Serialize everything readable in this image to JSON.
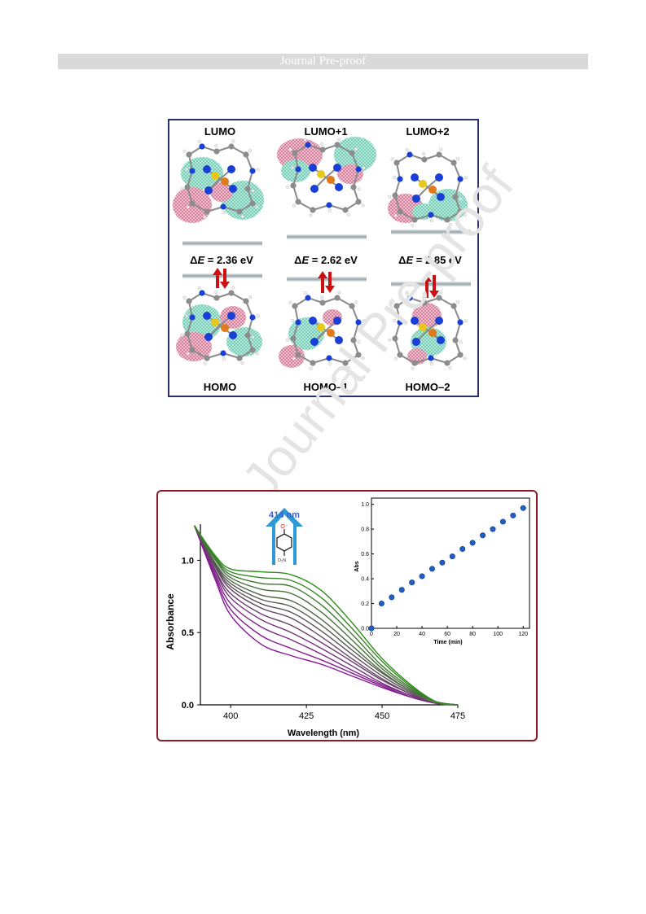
{
  "header": {
    "title": "Journal Pre-proof"
  },
  "watermark": "Journal Pre-proof",
  "figure1": {
    "lumo_labels": [
      "LUMO",
      "LUMO+1",
      "LUMO+2"
    ],
    "homo_labels": [
      "HOMO",
      "HOMO–1",
      "HOMO–2"
    ],
    "gaps": [
      {
        "prefix": "Δ",
        "var": "E",
        "value": " = 2.36 eV"
      },
      {
        "prefix": "Δ",
        "var": "E",
        "value": " = 2.62 eV"
      },
      {
        "prefix": "Δ",
        "var": "E",
        "value": " = 2.85 eV"
      }
    ],
    "colors": {
      "positive_lobe": "#6fcdb7",
      "negative_lobe": "#d77f9a",
      "arrow": "#cc1111",
      "level": "#9aa3a8"
    }
  },
  "chart_data": [
    {
      "type": "line",
      "title": "",
      "xlabel": "Wavelength (nm)",
      "ylabel": "Absorbance",
      "xlim": [
        390,
        475
      ],
      "ylim": [
        0.0,
        1.25
      ],
      "xticks": [
        "400",
        "425",
        "450",
        "475"
      ],
      "yticks": [
        "0.0",
        "0.5",
        "1.0"
      ],
      "annotation": "414 nm",
      "colors": {
        "early": "#8b139b",
        "late": "#2f8f1b"
      },
      "series": [
        {
          "values": [
            [
              388,
              1.24
            ],
            [
              395,
              0.86
            ],
            [
              400,
              0.62
            ],
            [
              410,
              0.42
            ],
            [
              420,
              0.34
            ],
            [
              430,
              0.28
            ],
            [
              440,
              0.2
            ],
            [
              450,
              0.12
            ],
            [
              460,
              0.05
            ],
            [
              468,
              0.01
            ],
            [
              475,
              0.0
            ]
          ]
        },
        {
          "values": [
            [
              388,
              1.24
            ],
            [
              395,
              0.88
            ],
            [
              400,
              0.66
            ],
            [
              410,
              0.48
            ],
            [
              420,
              0.39
            ],
            [
              430,
              0.31
            ],
            [
              440,
              0.22
            ],
            [
              450,
              0.13
            ],
            [
              460,
              0.05
            ],
            [
              468,
              0.01
            ],
            [
              475,
              0.0
            ]
          ]
        },
        {
          "values": [
            [
              388,
              1.24
            ],
            [
              395,
              0.9
            ],
            [
              400,
              0.7
            ],
            [
              410,
              0.54
            ],
            [
              420,
              0.45
            ],
            [
              430,
              0.35
            ],
            [
              440,
              0.24
            ],
            [
              450,
              0.14
            ],
            [
              460,
              0.06
            ],
            [
              468,
              0.01
            ],
            [
              475,
              0.0
            ]
          ]
        },
        {
          "values": [
            [
              388,
              1.24
            ],
            [
              395,
              0.92
            ],
            [
              400,
              0.74
            ],
            [
              410,
              0.59
            ],
            [
              420,
              0.5
            ],
            [
              430,
              0.39
            ],
            [
              440,
              0.27
            ],
            [
              450,
              0.15
            ],
            [
              460,
              0.06
            ],
            [
              468,
              0.01
            ],
            [
              475,
              0.0
            ]
          ]
        },
        {
          "values": [
            [
              388,
              1.24
            ],
            [
              395,
              0.93
            ],
            [
              400,
              0.77
            ],
            [
              410,
              0.63
            ],
            [
              420,
              0.55
            ],
            [
              430,
              0.43
            ],
            [
              440,
              0.3
            ],
            [
              450,
              0.17
            ],
            [
              460,
              0.07
            ],
            [
              468,
              0.01
            ],
            [
              475,
              0.0
            ]
          ]
        },
        {
          "values": [
            [
              388,
              1.24
            ],
            [
              395,
              0.95
            ],
            [
              400,
              0.8
            ],
            [
              410,
              0.67
            ],
            [
              420,
              0.6
            ],
            [
              430,
              0.47
            ],
            [
              440,
              0.32
            ],
            [
              450,
              0.18
            ],
            [
              460,
              0.07
            ],
            [
              468,
              0.01
            ],
            [
              475,
              0.0
            ]
          ]
        },
        {
          "values": [
            [
              388,
              1.24
            ],
            [
              395,
              0.96
            ],
            [
              400,
              0.82
            ],
            [
              410,
              0.7
            ],
            [
              420,
              0.64
            ],
            [
              430,
              0.51
            ],
            [
              440,
              0.35
            ],
            [
              450,
              0.2
            ],
            [
              460,
              0.08
            ],
            [
              468,
              0.01
            ],
            [
              475,
              0.0
            ]
          ]
        },
        {
          "values": [
            [
              388,
              1.24
            ],
            [
              395,
              0.97
            ],
            [
              400,
              0.84
            ],
            [
              410,
              0.73
            ],
            [
              420,
              0.68
            ],
            [
              430,
              0.55
            ],
            [
              440,
              0.38
            ],
            [
              450,
              0.22
            ],
            [
              460,
              0.09
            ],
            [
              468,
              0.02
            ],
            [
              475,
              0.0
            ]
          ]
        },
        {
          "values": [
            [
              388,
              1.24
            ],
            [
              395,
              0.98
            ],
            [
              400,
              0.86
            ],
            [
              410,
              0.76
            ],
            [
              420,
              0.72
            ],
            [
              430,
              0.59
            ],
            [
              440,
              0.41
            ],
            [
              450,
              0.23
            ],
            [
              460,
              0.09
            ],
            [
              468,
              0.02
            ],
            [
              475,
              0.0
            ]
          ]
        },
        {
          "values": [
            [
              388,
              1.24
            ],
            [
              395,
              1.0
            ],
            [
              400,
              0.88
            ],
            [
              410,
              0.8
            ],
            [
              420,
              0.77
            ],
            [
              430,
              0.64
            ],
            [
              440,
              0.45
            ],
            [
              450,
              0.25
            ],
            [
              460,
              0.1
            ],
            [
              468,
              0.02
            ],
            [
              475,
              0.0
            ]
          ]
        },
        {
          "values": [
            [
              388,
              1.24
            ],
            [
              395,
              1.01
            ],
            [
              400,
              0.9
            ],
            [
              410,
              0.84
            ],
            [
              420,
              0.82
            ],
            [
              430,
              0.69
            ],
            [
              440,
              0.49
            ],
            [
              450,
              0.27
            ],
            [
              460,
              0.11
            ],
            [
              468,
              0.02
            ],
            [
              475,
              0.0
            ]
          ]
        },
        {
          "values": [
            [
              388,
              1.24
            ],
            [
              395,
              1.02
            ],
            [
              400,
              0.92
            ],
            [
              410,
              0.88
            ],
            [
              420,
              0.86
            ],
            [
              430,
              0.74
            ],
            [
              440,
              0.53
            ],
            [
              450,
              0.3
            ],
            [
              460,
              0.12
            ],
            [
              468,
              0.02
            ],
            [
              475,
              0.0
            ]
          ]
        },
        {
          "values": [
            [
              388,
              1.24
            ],
            [
              395,
              1.03
            ],
            [
              400,
              0.94
            ],
            [
              410,
              0.92
            ],
            [
              420,
              0.9
            ],
            [
              430,
              0.79
            ],
            [
              440,
              0.57
            ],
            [
              450,
              0.32
            ],
            [
              460,
              0.13
            ],
            [
              468,
              0.02
            ],
            [
              475,
              0.0
            ]
          ]
        }
      ]
    },
    {
      "type": "scatter",
      "title": "",
      "xlabel": "Time (min)",
      "ylabel": "Abs",
      "xlim": [
        0,
        125
      ],
      "ylim": [
        0.0,
        1.05
      ],
      "xticks": [
        "0",
        "20",
        "40",
        "60",
        "80",
        "100",
        "120"
      ],
      "yticks": [
        "0.0",
        "0.2",
        "0.4",
        "0.6",
        "0.8",
        "1.0"
      ],
      "color": "#1f5fc4",
      "x": [
        0,
        8,
        16,
        24,
        32,
        40,
        48,
        56,
        64,
        72,
        80,
        88,
        96,
        104,
        112,
        120
      ],
      "y": [
        0.0,
        0.2,
        0.25,
        0.31,
        0.37,
        0.42,
        0.48,
        0.53,
        0.58,
        0.64,
        0.69,
        0.75,
        0.8,
        0.86,
        0.91,
        0.97
      ]
    }
  ],
  "molecule": {
    "top_label": "O⁻",
    "bottom_label": "O₂N"
  }
}
